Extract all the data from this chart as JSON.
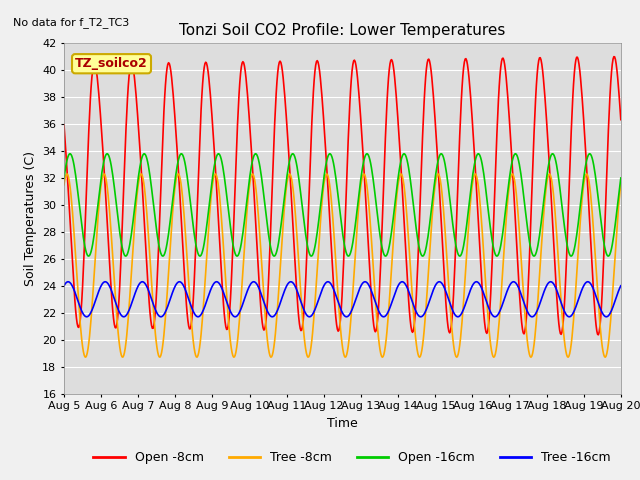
{
  "title": "Tonzi Soil CO2 Profile: Lower Temperatures",
  "no_data_text": "No data for f_T2_TC3",
  "legend_box_label": "TZ_soilco2",
  "ylabel": "Soil Temperatures (C)",
  "xlabel": "Time",
  "ylim": [
    16,
    42
  ],
  "xlim": [
    0,
    15
  ],
  "yticks": [
    16,
    18,
    20,
    22,
    24,
    26,
    28,
    30,
    32,
    34,
    36,
    38,
    40,
    42
  ],
  "xtick_labels": [
    "Aug 5",
    "Aug 6",
    "Aug 7",
    "Aug 8",
    "Aug 9",
    "Aug 10",
    "Aug 11",
    "Aug 12",
    "Aug 13",
    "Aug 14",
    "Aug 15",
    "Aug 16",
    "Aug 17",
    "Aug 18",
    "Aug 19",
    "Aug 20"
  ],
  "colors": {
    "open_8cm": "#ff0000",
    "tree_8cm": "#ffaa00",
    "open_16cm": "#00cc00",
    "tree_16cm": "#0000ff"
  },
  "legend_entries": [
    "Open -8cm",
    "Tree -8cm",
    "Open -16cm",
    "Tree -16cm"
  ],
  "background_color": "#dddddd",
  "grid_color": "#ffffff",
  "legend_box_color": "#ffff99",
  "legend_box_edge": "#ccaa00",
  "fig_bg_color": "#f0f0f0"
}
